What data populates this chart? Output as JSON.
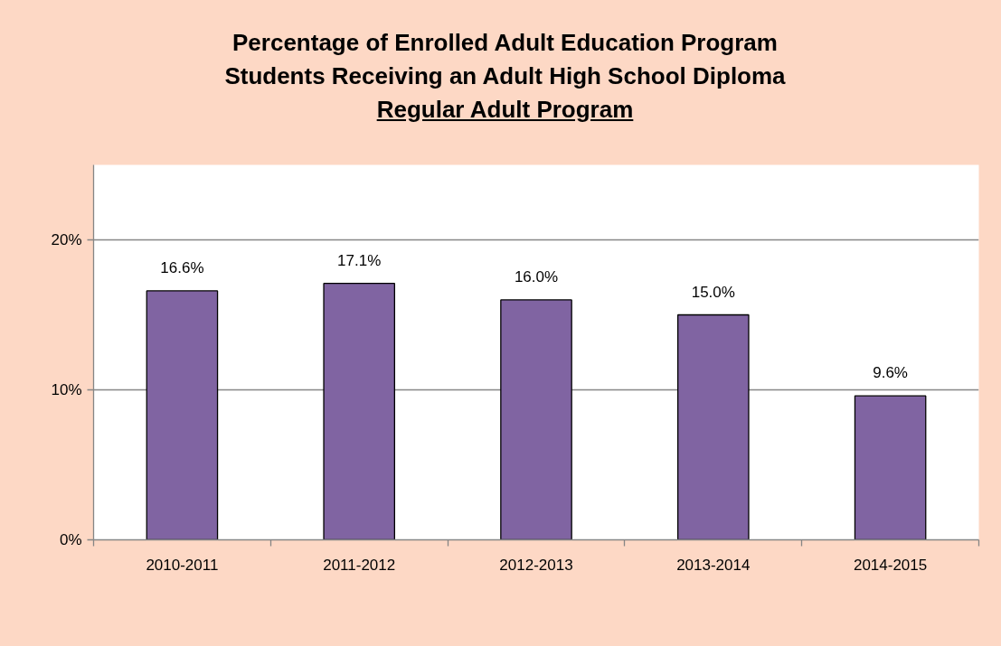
{
  "chart_data": {
    "type": "bar",
    "title": "Percentage of Enrolled Adult Education Program\nStudents Receiving an Adult High School Diploma",
    "subtitle": "Regular Adult Program",
    "categories": [
      "2010-2011",
      "2011-2012",
      "2012-2013",
      "2013-2014",
      "2014-2015"
    ],
    "values": [
      16.6,
      17.1,
      16.0,
      15.0,
      9.6
    ],
    "color": "#8064a2",
    "value_labels": [
      "16.6%",
      "17.1%",
      "16.0%",
      "15.0%",
      "9.6%"
    ],
    "ylim": [
      0,
      25
    ],
    "yticks": [
      {
        "value": 0,
        "label": "0%"
      },
      {
        "value": 10,
        "label": "10%"
      },
      {
        "value": 20,
        "label": "20%"
      }
    ],
    "grid": "y"
  }
}
